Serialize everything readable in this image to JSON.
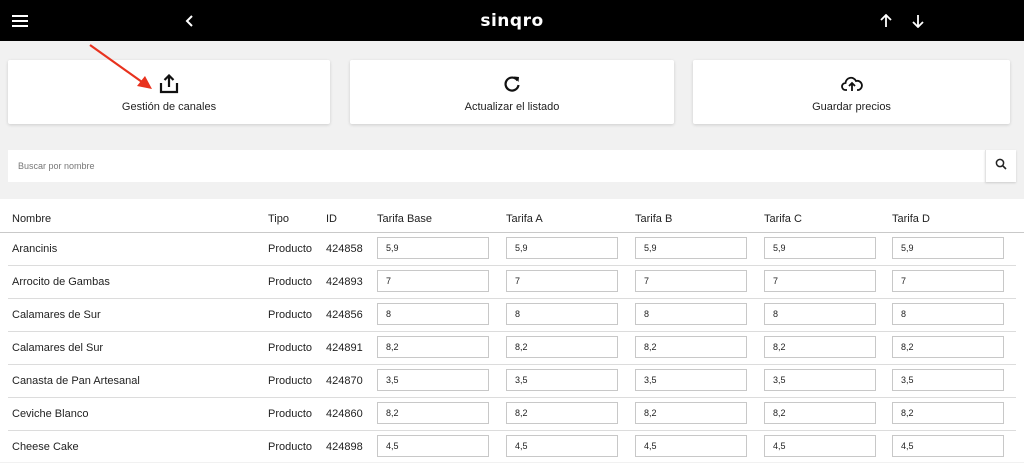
{
  "app": {
    "brand": "sinqro"
  },
  "actions": [
    {
      "label": "Gestión de canales",
      "icon": "share-upload-icon"
    },
    {
      "label": "Actualizar el listado",
      "icon": "refresh-icon"
    },
    {
      "label": "Guardar precios",
      "icon": "cloud-upload-icon"
    }
  ],
  "search": {
    "placeholder": "Buscar por nombre",
    "value": ""
  },
  "table": {
    "headers": [
      "Nombre",
      "Tipo",
      "ID",
      "Tarifa Base",
      "Tarifa A",
      "Tarifa B",
      "Tarifa C",
      "Tarifa D"
    ],
    "rows": [
      {
        "name": "Arancinis",
        "type": "Producto",
        "id": "424858",
        "prices": [
          "5,9",
          "5,9",
          "5,9",
          "5,9",
          "5,9"
        ]
      },
      {
        "name": "Arrocito de Gambas",
        "type": "Producto",
        "id": "424893",
        "prices": [
          "7",
          "7",
          "7",
          "7",
          "7"
        ]
      },
      {
        "name": "Calamares de Sur",
        "type": "Producto",
        "id": "424856",
        "prices": [
          "8",
          "8",
          "8",
          "8",
          "8"
        ]
      },
      {
        "name": "Calamares del Sur",
        "type": "Producto",
        "id": "424891",
        "prices": [
          "8,2",
          "8,2",
          "8,2",
          "8,2",
          "8,2"
        ]
      },
      {
        "name": "Canasta de Pan Artesanal",
        "type": "Producto",
        "id": "424870",
        "prices": [
          "3,5",
          "3,5",
          "3,5",
          "3,5",
          "3,5"
        ]
      },
      {
        "name": "Ceviche Blanco",
        "type": "Producto",
        "id": "424860",
        "prices": [
          "8,2",
          "8,2",
          "8,2",
          "8,2",
          "8,2"
        ]
      },
      {
        "name": "Cheese Cake",
        "type": "Producto",
        "id": "424898",
        "prices": [
          "4,5",
          "4,5",
          "4,5",
          "4,5",
          "4,5"
        ]
      }
    ]
  },
  "colors": {
    "topbar": "#000000",
    "background": "#f1f1f1",
    "annotation_arrow": "#e8321e"
  }
}
